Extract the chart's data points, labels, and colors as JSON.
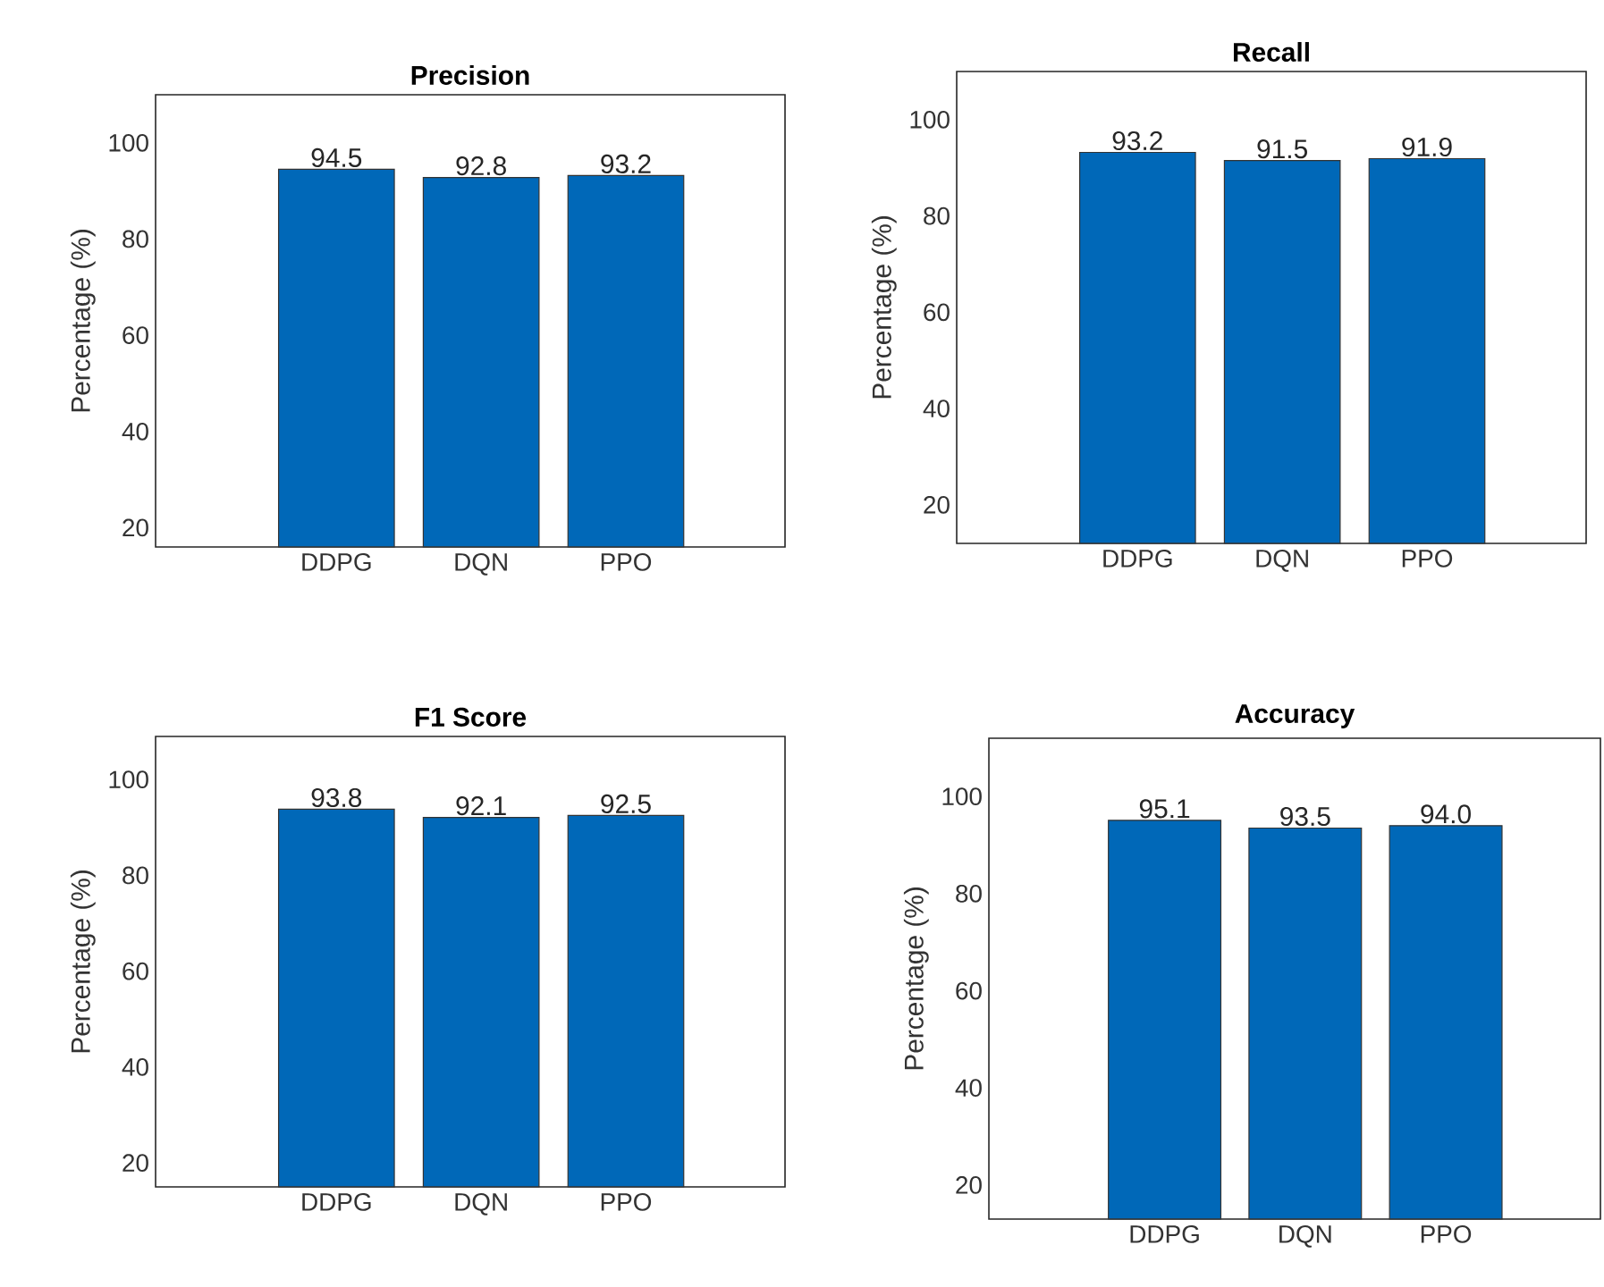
{
  "chart_data": [
    {
      "type": "bar",
      "title": "Precision",
      "ylabel": "Percentage (%)",
      "categories": [
        "DDPG",
        "DQN",
        "PPO"
      ],
      "values": [
        94.5,
        92.8,
        93.2
      ],
      "color": "#0068b8",
      "ylim": [
        16,
        110
      ],
      "yticks": [
        20,
        40,
        60,
        80,
        100
      ],
      "data_labels": true
    },
    {
      "type": "bar",
      "title": "Recall",
      "ylabel": "Percentage (%)",
      "categories": [
        "DDPG",
        "DQN",
        "PPO"
      ],
      "values": [
        93.2,
        91.5,
        91.9
      ],
      "color": "#0068b8",
      "ylim": [
        12,
        110
      ],
      "yticks": [
        20,
        40,
        60,
        80,
        100
      ],
      "data_labels": true
    },
    {
      "type": "bar",
      "title": "F1 Score",
      "ylabel": "Percentage (%)",
      "categories": [
        "DDPG",
        "DQN",
        "PPO"
      ],
      "values": [
        93.8,
        92.1,
        92.5
      ],
      "color": "#0068b8",
      "ylim": [
        15,
        109
      ],
      "yticks": [
        20,
        40,
        60,
        80,
        100
      ],
      "data_labels": true
    },
    {
      "type": "bar",
      "title": "Accuracy",
      "ylabel": "Percentage (%)",
      "categories": [
        "DDPG",
        "DQN",
        "PPO"
      ],
      "values": [
        95.1,
        93.5,
        94.0
      ],
      "value_labels": [
        "95.1",
        "93.5",
        "94.0"
      ],
      "color": "#0068b8",
      "ylim": [
        13,
        112
      ],
      "yticks": [
        20,
        40,
        60,
        80,
        100
      ]
    }
  ]
}
